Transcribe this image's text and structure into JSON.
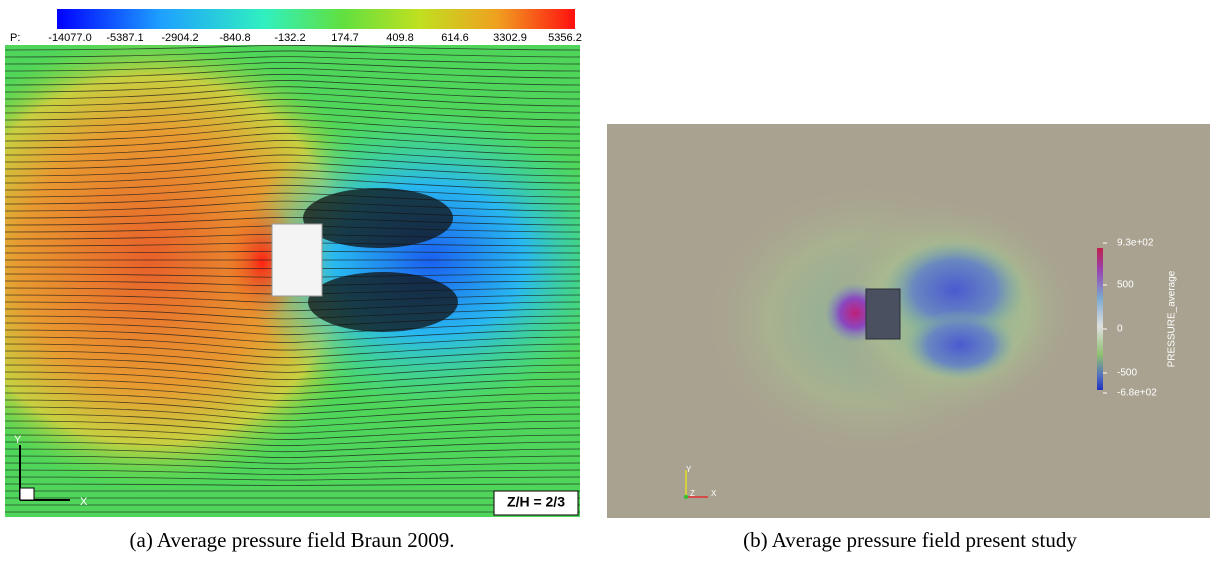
{
  "panels": [
    {
      "colorbar": {
        "label": "P:",
        "ticks": [
          "-14077.0",
          "-5387.1",
          "-2904.2",
          "-840.8",
          "-132.2",
          "174.7",
          "409.8",
          "614.6",
          "3302.9",
          "5356.2"
        ]
      },
      "axes": {
        "y": "Y",
        "x": "X"
      },
      "annotation": "Z/H = 2/3",
      "caption": "(a) Average pressure field Braun 2009."
    },
    {
      "colorbar": {
        "title": "PRESSURE_average",
        "ticks": [
          "9.3e+02",
          "500",
          "0",
          "-500",
          "-6.8e+02"
        ]
      },
      "axes": {
        "y": "Y",
        "z": "Z",
        "x": "X"
      },
      "caption": "(b) Average pressure field present study"
    }
  ]
}
